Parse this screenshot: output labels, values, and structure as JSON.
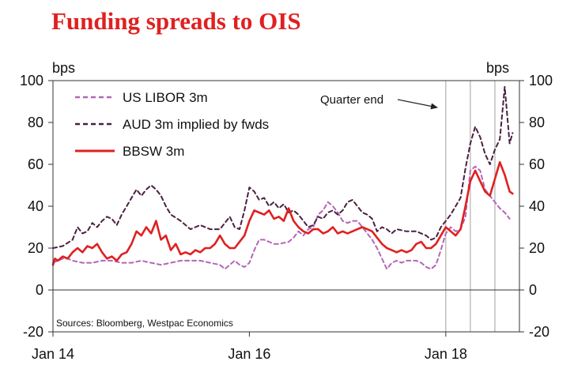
{
  "chart_data": {
    "type": "line",
    "title": "Funding spreads to OIS",
    "units_left": "bps",
    "units_right": "bps",
    "ylim": [
      -20,
      100
    ],
    "yticks": [
      -20,
      0,
      20,
      40,
      60,
      80,
      100
    ],
    "xlim": [
      2014.0,
      2018.75
    ],
    "xticks": [
      {
        "label": "Jan 14",
        "x": 2014.0
      },
      {
        "label": "Jan 16",
        "x": 2016.0
      },
      {
        "label": "Jan 18",
        "x": 2018.0
      }
    ],
    "grid": false,
    "legend_position": "top-left",
    "source": "Sources: Bloomberg, Westpac Economics",
    "annotation": {
      "text": "Quarter end",
      "x": 2017.95,
      "y": 89
    },
    "quarter_end_lines": [
      2018.0,
      2018.25,
      2018.5
    ],
    "series": [
      {
        "name": "US LIBOR 3m",
        "color": "#b565b5",
        "style": "dashed",
        "width": 2,
        "points": [
          [
            2014.0,
            13
          ],
          [
            2014.05,
            14
          ],
          [
            2014.1,
            15
          ],
          [
            2014.15,
            15
          ],
          [
            2014.2,
            14
          ],
          [
            2014.3,
            13
          ],
          [
            2014.4,
            13
          ],
          [
            2014.5,
            14
          ],
          [
            2014.6,
            14
          ],
          [
            2014.7,
            13
          ],
          [
            2014.8,
            13
          ],
          [
            2014.9,
            14
          ],
          [
            2015.0,
            13
          ],
          [
            2015.1,
            12
          ],
          [
            2015.2,
            13
          ],
          [
            2015.3,
            14
          ],
          [
            2015.4,
            14
          ],
          [
            2015.5,
            14
          ],
          [
            2015.6,
            13
          ],
          [
            2015.7,
            12
          ],
          [
            2015.75,
            10
          ],
          [
            2015.8,
            12
          ],
          [
            2015.85,
            14
          ],
          [
            2015.9,
            12
          ],
          [
            2015.95,
            11
          ],
          [
            2016.0,
            13
          ],
          [
            2016.05,
            19
          ],
          [
            2016.1,
            24
          ],
          [
            2016.15,
            24
          ],
          [
            2016.25,
            22
          ],
          [
            2016.3,
            22
          ],
          [
            2016.4,
            23
          ],
          [
            2016.45,
            25
          ],
          [
            2016.5,
            28
          ],
          [
            2016.55,
            26
          ],
          [
            2016.6,
            29
          ],
          [
            2016.65,
            30
          ],
          [
            2016.7,
            36
          ],
          [
            2016.75,
            38
          ],
          [
            2016.8,
            42
          ],
          [
            2016.85,
            40
          ],
          [
            2016.9,
            37
          ],
          [
            2016.95,
            33
          ],
          [
            2017.0,
            32
          ],
          [
            2017.05,
            33
          ],
          [
            2017.1,
            33
          ],
          [
            2017.15,
            30
          ],
          [
            2017.2,
            27
          ],
          [
            2017.25,
            24
          ],
          [
            2017.3,
            20
          ],
          [
            2017.35,
            15
          ],
          [
            2017.4,
            10
          ],
          [
            2017.45,
            13
          ],
          [
            2017.5,
            14
          ],
          [
            2017.55,
            13
          ],
          [
            2017.6,
            14
          ],
          [
            2017.7,
            14
          ],
          [
            2017.75,
            13
          ],
          [
            2017.8,
            11
          ],
          [
            2017.85,
            10
          ],
          [
            2017.9,
            12
          ],
          [
            2017.95,
            19
          ],
          [
            2018.0,
            27
          ],
          [
            2018.05,
            30
          ],
          [
            2018.1,
            28
          ],
          [
            2018.15,
            29
          ],
          [
            2018.2,
            35
          ],
          [
            2018.25,
            57
          ],
          [
            2018.3,
            59
          ],
          [
            2018.35,
            57
          ],
          [
            2018.4,
            48
          ],
          [
            2018.45,
            45
          ],
          [
            2018.5,
            42
          ],
          [
            2018.55,
            39
          ],
          [
            2018.6,
            37
          ],
          [
            2018.65,
            34
          ]
        ]
      },
      {
        "name": "AUD 3m implied by fwds",
        "color": "#4a2040",
        "style": "dashed",
        "width": 2,
        "points": [
          [
            2014.0,
            20
          ],
          [
            2014.1,
            21
          ],
          [
            2014.2,
            24
          ],
          [
            2014.25,
            30
          ],
          [
            2014.3,
            27
          ],
          [
            2014.35,
            28
          ],
          [
            2014.4,
            32
          ],
          [
            2014.45,
            30
          ],
          [
            2014.5,
            33
          ],
          [
            2014.55,
            35
          ],
          [
            2014.6,
            34
          ],
          [
            2014.65,
            31
          ],
          [
            2014.7,
            36
          ],
          [
            2014.75,
            40
          ],
          [
            2014.8,
            44
          ],
          [
            2014.85,
            48
          ],
          [
            2014.9,
            45
          ],
          [
            2014.95,
            48
          ],
          [
            2015.0,
            50
          ],
          [
            2015.05,
            48
          ],
          [
            2015.1,
            45
          ],
          [
            2015.15,
            40
          ],
          [
            2015.2,
            36
          ],
          [
            2015.3,
            33
          ],
          [
            2015.4,
            29
          ],
          [
            2015.5,
            31
          ],
          [
            2015.6,
            29
          ],
          [
            2015.7,
            29
          ],
          [
            2015.75,
            32
          ],
          [
            2015.8,
            35
          ],
          [
            2015.85,
            30
          ],
          [
            2015.9,
            29
          ],
          [
            2015.95,
            38
          ],
          [
            2016.0,
            49
          ],
          [
            2016.05,
            47
          ],
          [
            2016.1,
            43
          ],
          [
            2016.15,
            44
          ],
          [
            2016.2,
            40
          ],
          [
            2016.25,
            42
          ],
          [
            2016.3,
            39
          ],
          [
            2016.35,
            41
          ],
          [
            2016.4,
            37
          ],
          [
            2016.45,
            38
          ],
          [
            2016.5,
            36
          ],
          [
            2016.55,
            33
          ],
          [
            2016.6,
            30
          ],
          [
            2016.65,
            31
          ],
          [
            2016.7,
            35
          ],
          [
            2016.75,
            34
          ],
          [
            2016.8,
            37
          ],
          [
            2016.85,
            38
          ],
          [
            2016.9,
            36
          ],
          [
            2016.95,
            38
          ],
          [
            2017.0,
            42
          ],
          [
            2017.05,
            43
          ],
          [
            2017.1,
            40
          ],
          [
            2017.15,
            37
          ],
          [
            2017.2,
            36
          ],
          [
            2017.25,
            34
          ],
          [
            2017.3,
            28
          ],
          [
            2017.35,
            30
          ],
          [
            2017.4,
            29
          ],
          [
            2017.45,
            27
          ],
          [
            2017.5,
            29
          ],
          [
            2017.6,
            28
          ],
          [
            2017.7,
            28
          ],
          [
            2017.8,
            26
          ],
          [
            2017.85,
            24
          ],
          [
            2017.9,
            25
          ],
          [
            2017.95,
            30
          ],
          [
            2018.0,
            33
          ],
          [
            2018.05,
            36
          ],
          [
            2018.1,
            40
          ],
          [
            2018.15,
            44
          ],
          [
            2018.2,
            58
          ],
          [
            2018.25,
            70
          ],
          [
            2018.3,
            78
          ],
          [
            2018.35,
            73
          ],
          [
            2018.4,
            65
          ],
          [
            2018.45,
            60
          ],
          [
            2018.5,
            67
          ],
          [
            2018.55,
            72
          ],
          [
            2018.6,
            97
          ],
          [
            2018.65,
            70
          ],
          [
            2018.68,
            75
          ]
        ]
      },
      {
        "name": "BBSW 3m",
        "color": "#e02020",
        "style": "solid",
        "width": 2.6,
        "points": [
          [
            2014.0,
            12
          ],
          [
            2014.02,
            15
          ],
          [
            2014.05,
            14
          ],
          [
            2014.1,
            16
          ],
          [
            2014.15,
            15
          ],
          [
            2014.2,
            18
          ],
          [
            2014.25,
            20
          ],
          [
            2014.3,
            18
          ],
          [
            2014.35,
            21
          ],
          [
            2014.4,
            20
          ],
          [
            2014.45,
            22
          ],
          [
            2014.5,
            18
          ],
          [
            2014.55,
            15
          ],
          [
            2014.6,
            16
          ],
          [
            2014.65,
            14
          ],
          [
            2014.7,
            17
          ],
          [
            2014.75,
            18
          ],
          [
            2014.8,
            22
          ],
          [
            2014.85,
            28
          ],
          [
            2014.9,
            26
          ],
          [
            2014.95,
            30
          ],
          [
            2015.0,
            27
          ],
          [
            2015.05,
            33
          ],
          [
            2015.1,
            24
          ],
          [
            2015.15,
            26
          ],
          [
            2015.2,
            19
          ],
          [
            2015.25,
            22
          ],
          [
            2015.3,
            17
          ],
          [
            2015.35,
            18
          ],
          [
            2015.4,
            17
          ],
          [
            2015.45,
            19
          ],
          [
            2015.5,
            18
          ],
          [
            2015.55,
            20
          ],
          [
            2015.6,
            20
          ],
          [
            2015.65,
            22
          ],
          [
            2015.7,
            26
          ],
          [
            2015.75,
            22
          ],
          [
            2015.8,
            20
          ],
          [
            2015.85,
            20
          ],
          [
            2015.9,
            23
          ],
          [
            2015.95,
            26
          ],
          [
            2016.0,
            33
          ],
          [
            2016.05,
            38
          ],
          [
            2016.1,
            37
          ],
          [
            2016.15,
            36
          ],
          [
            2016.2,
            38
          ],
          [
            2016.25,
            34
          ],
          [
            2016.3,
            35
          ],
          [
            2016.35,
            33
          ],
          [
            2016.4,
            39
          ],
          [
            2016.45,
            33
          ],
          [
            2016.5,
            30
          ],
          [
            2016.55,
            28
          ],
          [
            2016.6,
            27
          ],
          [
            2016.65,
            29
          ],
          [
            2016.7,
            29
          ],
          [
            2016.75,
            27
          ],
          [
            2016.8,
            28
          ],
          [
            2016.85,
            30
          ],
          [
            2016.9,
            27
          ],
          [
            2016.95,
            28
          ],
          [
            2017.0,
            27
          ],
          [
            2017.1,
            29
          ],
          [
            2017.15,
            30
          ],
          [
            2017.2,
            29
          ],
          [
            2017.25,
            28
          ],
          [
            2017.3,
            25
          ],
          [
            2017.35,
            22
          ],
          [
            2017.4,
            20
          ],
          [
            2017.45,
            19
          ],
          [
            2017.5,
            18
          ],
          [
            2017.55,
            19
          ],
          [
            2017.6,
            18
          ],
          [
            2017.65,
            19
          ],
          [
            2017.7,
            22
          ],
          [
            2017.75,
            23
          ],
          [
            2017.8,
            20
          ],
          [
            2017.85,
            20
          ],
          [
            2017.9,
            22
          ],
          [
            2017.95,
            26
          ],
          [
            2018.0,
            30
          ],
          [
            2018.05,
            28
          ],
          [
            2018.1,
            26
          ],
          [
            2018.15,
            29
          ],
          [
            2018.2,
            40
          ],
          [
            2018.25,
            52
          ],
          [
            2018.3,
            57
          ],
          [
            2018.35,
            52
          ],
          [
            2018.4,
            47
          ],
          [
            2018.45,
            45
          ],
          [
            2018.5,
            53
          ],
          [
            2018.55,
            61
          ],
          [
            2018.6,
            55
          ],
          [
            2018.65,
            47
          ],
          [
            2018.68,
            46
          ]
        ]
      }
    ]
  }
}
